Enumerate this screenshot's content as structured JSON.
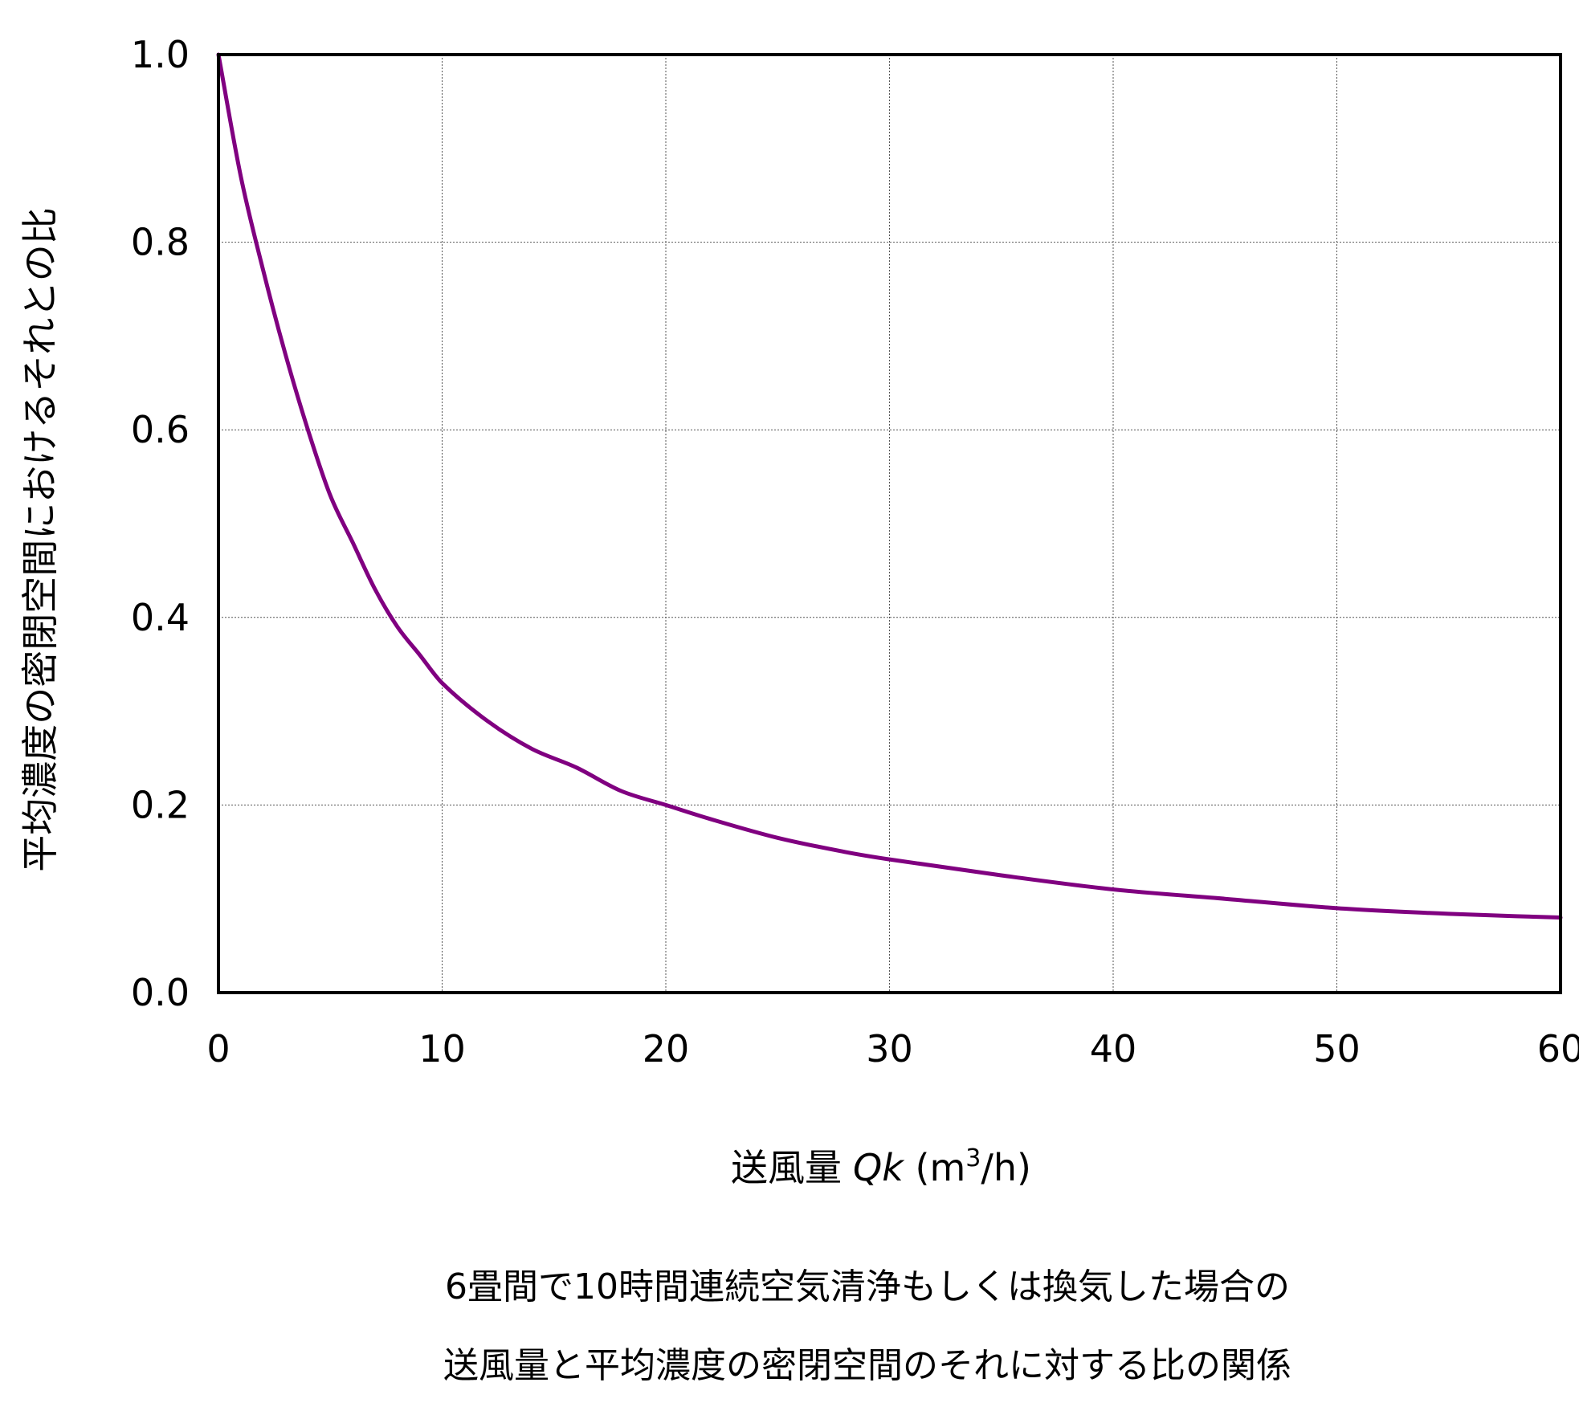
{
  "chart_data": {
    "type": "line",
    "xlabel_main": "送風量",
    "xlabel_symbol": "Qk",
    "xlabel_unit_open": " (m",
    "xlabel_unit_sup": "3",
    "xlabel_unit_close": "/h)",
    "ylabel": "平均濃度の密閉空間におけるそれとの比",
    "xlim": [
      0,
      60
    ],
    "ylim": [
      0,
      1.0
    ],
    "x_ticks": [
      "0",
      "10",
      "20",
      "30",
      "40",
      "50",
      "60"
    ],
    "y_ticks": [
      "0.0",
      "0.2",
      "0.4",
      "0.6",
      "0.8",
      "1.0"
    ],
    "grid": true,
    "series": [
      {
        "color": "#800080",
        "x": [
          0,
          1,
          2,
          3,
          4,
          5,
          6,
          7,
          8,
          9,
          10,
          12,
          14,
          16,
          18,
          20,
          22,
          25,
          28,
          30,
          35,
          40,
          45,
          50,
          55,
          60
        ],
        "y": [
          1.0,
          0.87,
          0.77,
          0.68,
          0.6,
          0.53,
          0.48,
          0.43,
          0.39,
          0.36,
          0.33,
          0.29,
          0.26,
          0.24,
          0.215,
          0.2,
          0.185,
          0.165,
          0.15,
          0.142,
          0.125,
          0.11,
          0.1,
          0.09,
          0.084,
          0.08
        ]
      }
    ]
  },
  "caption": {
    "line1": "6畳間で10時間連続空気清浄もしくは換気した場合の",
    "line2": "送風量と平均濃度の密閉空間のそれに対する比の関係"
  }
}
